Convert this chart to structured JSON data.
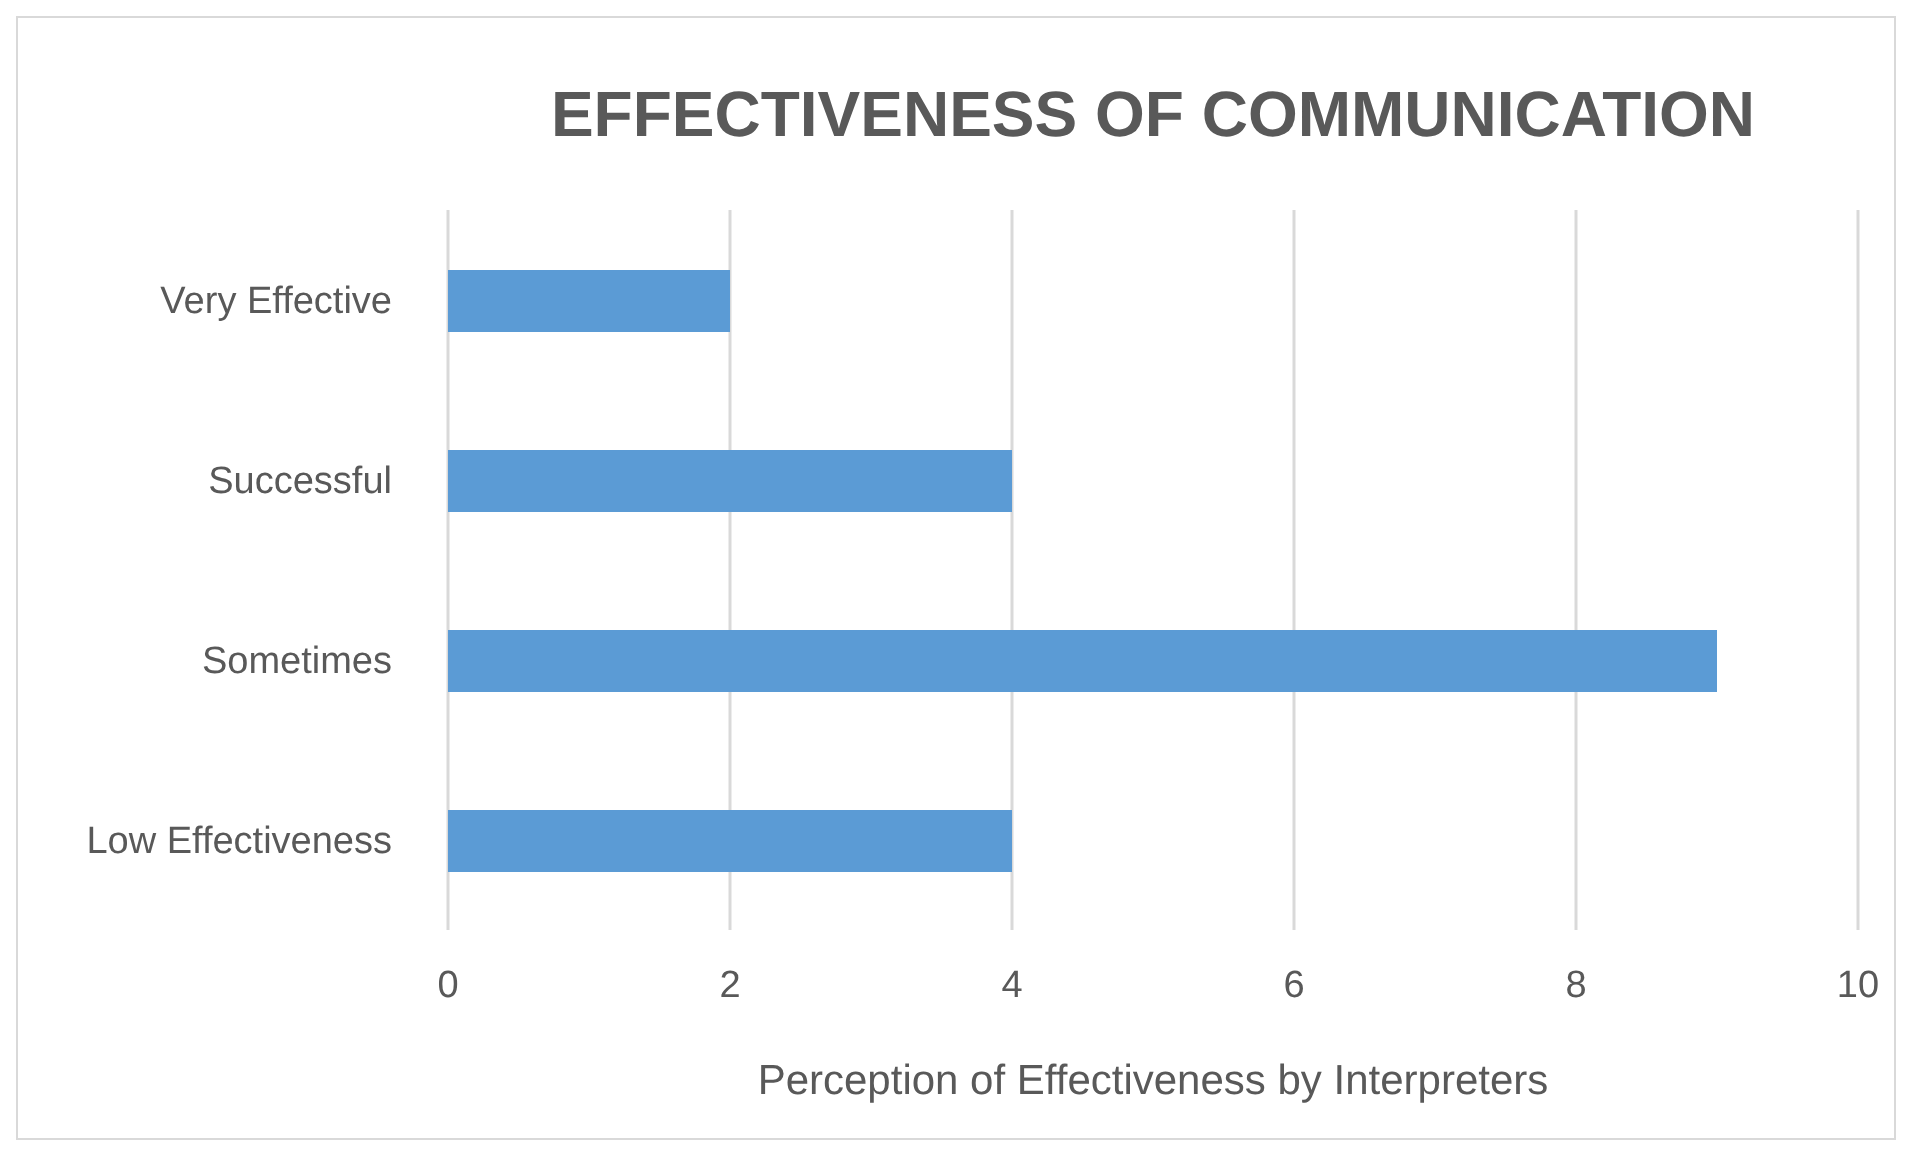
{
  "chart_data": {
    "type": "bar",
    "orientation": "horizontal",
    "title": "EFFECTIVENESS OF COMMUNICATION",
    "xlabel": "Perception of Effectiveness by Interpreters",
    "categories": [
      "Very Effective",
      "Successful",
      "Sometimes",
      "Low Effectiveness"
    ],
    "values": [
      2,
      4,
      9,
      4
    ],
    "color": "#5b9bd5",
    "xlim": [
      0,
      10
    ],
    "xticks": [
      0,
      2,
      4,
      6,
      8,
      10
    ],
    "grid": "x",
    "legend": false
  }
}
